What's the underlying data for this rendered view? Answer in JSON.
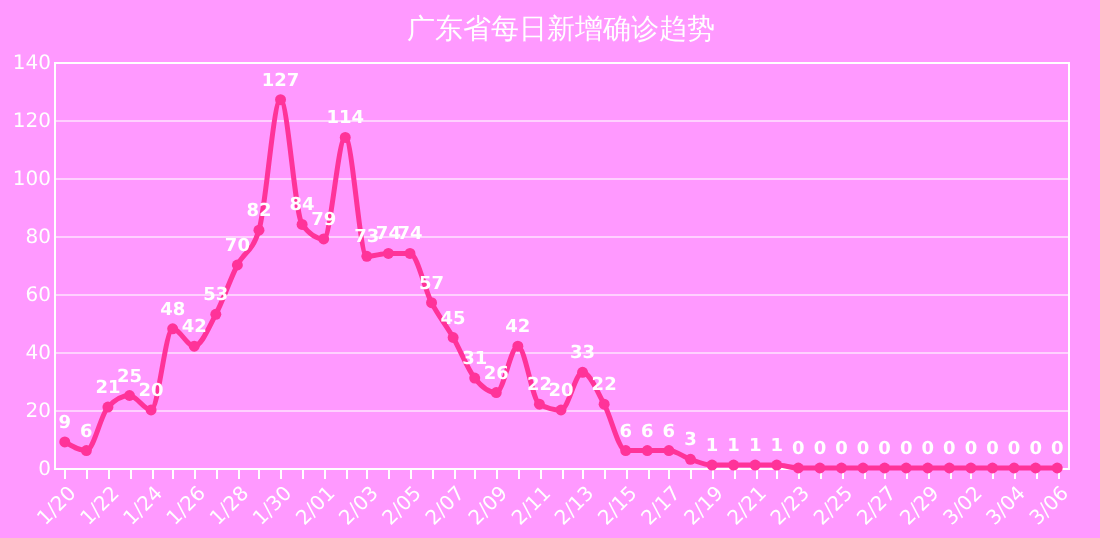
{
  "chart_data": {
    "type": "line",
    "title": "广东省每日新增确诊趋势",
    "categories": [
      "1/20",
      null,
      "1/22",
      null,
      "1/24",
      null,
      "1/26",
      null,
      "1/28",
      null,
      "1/30",
      null,
      "2/01",
      null,
      "2/03",
      null,
      "2/05",
      null,
      "2/07",
      null,
      "2/09",
      null,
      "2/11",
      null,
      "2/13",
      null,
      "2/15",
      null,
      "2/17",
      null,
      "2/19",
      null,
      "2/21",
      null,
      "2/23",
      null,
      "2/25",
      null,
      "2/27",
      null,
      "2/29",
      null,
      "3/02",
      null,
      "3/04",
      null,
      "3/06"
    ],
    "series": [
      {
        "color": "#ff3399",
        "values": [
          9,
          6,
          21,
          25,
          20,
          48,
          42,
          53,
          70,
          82,
          127,
          84,
          79,
          114,
          73,
          74,
          74,
          57,
          45,
          31,
          26,
          42,
          22,
          20,
          33,
          22,
          6,
          6,
          6,
          3,
          1,
          1,
          1,
          1,
          0,
          0,
          0,
          0,
          0,
          0,
          0,
          0,
          0,
          0,
          0,
          0,
          0
        ]
      }
    ],
    "ylim": [
      0,
      140
    ],
    "yticks": [
      0,
      20,
      40,
      60,
      80,
      100,
      120,
      140
    ],
    "grid": "y",
    "data_labels": true,
    "marker": "circle",
    "line_style": "solid"
  }
}
